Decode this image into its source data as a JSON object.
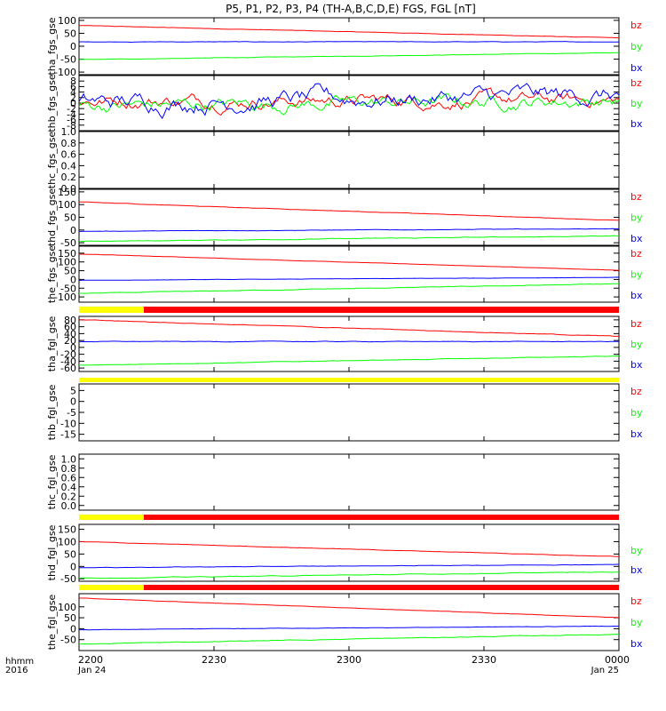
{
  "title": "P5, P1, P2, P3, P4 (TH-A,B,C,D,E) FGS, FGL [nT]",
  "time_axis": {
    "ticks": [
      "2200",
      "2230",
      "2300",
      "2330",
      "0000"
    ],
    "start_date": "Jan 24",
    "end_date": "Jan 25",
    "corner_label_1": "hhmm",
    "corner_label_2": "2016"
  },
  "colors": {
    "bz": "#ff0000",
    "by": "#00ff00",
    "bx": "#0000ff",
    "flag_yellow": "#ffff00",
    "flag_red": "#ff0000"
  },
  "chart_data": [
    {
      "type": "line",
      "ylabel": "tha_fgs_gse",
      "ylim": [
        -110,
        110
      ],
      "yticks": [
        "100",
        "50",
        "0",
        "-50",
        "-100"
      ],
      "legend": [
        "bz",
        "by",
        "bx"
      ],
      "series": [
        {
          "name": "bz",
          "start": 80,
          "end": 32,
          "noise": 1
        },
        {
          "name": "by",
          "start": -52,
          "end": -25,
          "noise": 1
        },
        {
          "name": "bx",
          "start": 17,
          "end": 17,
          "noise": 1
        }
      ]
    },
    {
      "type": "line",
      "ylabel": "thb_fgs_gse",
      "ylim": [
        -10,
        10
      ],
      "yticks": [
        "8",
        "6",
        "4",
        "2",
        "0",
        "-2",
        "-4",
        "-6",
        "-8"
      ],
      "legend": [
        "bz",
        "by",
        "bx"
      ],
      "series": [
        {
          "name": "bz",
          "start": 1,
          "end": 1,
          "noise": 3
        },
        {
          "name": "by",
          "start": -1,
          "end": 1,
          "noise": 3
        },
        {
          "name": "bx",
          "start": 0,
          "end": 3,
          "noise": 4
        }
      ]
    },
    {
      "type": "line",
      "ylabel": "thc_fgs_gse",
      "ylim": [
        0,
        1
      ],
      "yticks": [
        "1.0",
        "0.8",
        "0.6",
        "0.4",
        "0.2",
        "0.0"
      ],
      "legend": [],
      "series": []
    },
    {
      "type": "line",
      "ylabel": "thd_fgs_gse",
      "ylim": [
        -60,
        160
      ],
      "yticks": [
        "150",
        "100",
        "50",
        "0",
        "-50"
      ],
      "legend": [
        "bz",
        "by",
        "bx"
      ],
      "series": [
        {
          "name": "bz",
          "start": 110,
          "end": 38,
          "noise": 1
        },
        {
          "name": "by",
          "start": -45,
          "end": -23,
          "noise": 1.5
        },
        {
          "name": "bx",
          "start": -5,
          "end": 5,
          "noise": 1
        }
      ]
    },
    {
      "type": "line",
      "ylabel": "the_fgs_gse",
      "ylim": [
        -130,
        190
      ],
      "yticks": [
        "150",
        "100",
        "50",
        "0",
        "-50",
        "-100"
      ],
      "legend": [
        "bz",
        "by",
        "bx"
      ],
      "series": [
        {
          "name": "bz",
          "start": 145,
          "end": 52,
          "noise": 1
        },
        {
          "name": "by",
          "start": -80,
          "end": -25,
          "noise": 2
        },
        {
          "name": "bx",
          "start": -5,
          "end": 12,
          "noise": 1
        }
      ]
    },
    {
      "type": "line",
      "ylabel": "tha_fgl_gse",
      "ylim": [
        -70,
        90
      ],
      "yticks": [
        "80",
        "60",
        "40",
        "20",
        "0",
        "-20",
        "-40",
        "-60"
      ],
      "legend": [
        "bz",
        "by",
        "bx"
      ],
      "series": [
        {
          "name": "bz",
          "start": 80,
          "end": 32,
          "noise": 1
        },
        {
          "name": "by",
          "start": -52,
          "end": -25,
          "noise": 1
        },
        {
          "name": "bx",
          "start": 17,
          "end": 17,
          "noise": 1
        }
      ]
    },
    {
      "type": "line",
      "ylabel": "thb_fgl_gse",
      "ylim": [
        -18,
        8
      ],
      "yticks": [
        "5",
        "0",
        "-5",
        "-10",
        "-15"
      ],
      "legend": [
        "bz",
        "by",
        "bx"
      ],
      "series": []
    },
    {
      "type": "line",
      "ylabel": "thc_fgl_gse",
      "ylim": [
        -0.1,
        1.1
      ],
      "yticks": [
        "1.0",
        "0.8",
        "0.6",
        "0.4",
        "0.2",
        "0.0"
      ],
      "legend": [],
      "series": []
    },
    {
      "type": "line",
      "ylabel": "thd_fgl_gse",
      "ylim": [
        -60,
        170
      ],
      "yticks": [
        "150",
        "100",
        "50",
        "0",
        "-50"
      ],
      "legend": [
        "by",
        "bx"
      ],
      "series": [
        {
          "name": "bz",
          "start": 100,
          "end": 40,
          "noise": 1
        },
        {
          "name": "by",
          "start": -48,
          "end": -22,
          "noise": 1.5
        },
        {
          "name": "bx",
          "start": -5,
          "end": 8,
          "noise": 1
        }
      ]
    },
    {
      "type": "line",
      "ylabel": "the_fgl_gse",
      "ylim": [
        -100,
        160
      ],
      "yticks": [
        "100",
        "50",
        "0",
        "-50"
      ],
      "legend": [
        "bz",
        "by",
        "bx"
      ],
      "series": [
        {
          "name": "bz",
          "start": 140,
          "end": 50,
          "noise": 1
        },
        {
          "name": "by",
          "start": -70,
          "end": -25,
          "noise": 2
        },
        {
          "name": "bx",
          "start": -5,
          "end": 12,
          "noise": 1
        }
      ]
    }
  ],
  "mode_bars": [
    {
      "segments": [
        {
          "color": "yellow",
          "from": 0,
          "to": 0.12
        },
        {
          "color": "red",
          "from": 0.12,
          "to": 1
        }
      ]
    },
    {
      "segments": [
        {
          "color": "yellow",
          "from": 0,
          "to": 1
        }
      ]
    },
    {
      "segments": [
        {
          "color": "yellow",
          "from": 0,
          "to": 0.12
        },
        {
          "color": "red",
          "from": 0.12,
          "to": 1
        }
      ]
    },
    {
      "segments": [
        {
          "color": "yellow",
          "from": 0,
          "to": 0.12
        },
        {
          "color": "red",
          "from": 0.12,
          "to": 1
        }
      ]
    }
  ]
}
